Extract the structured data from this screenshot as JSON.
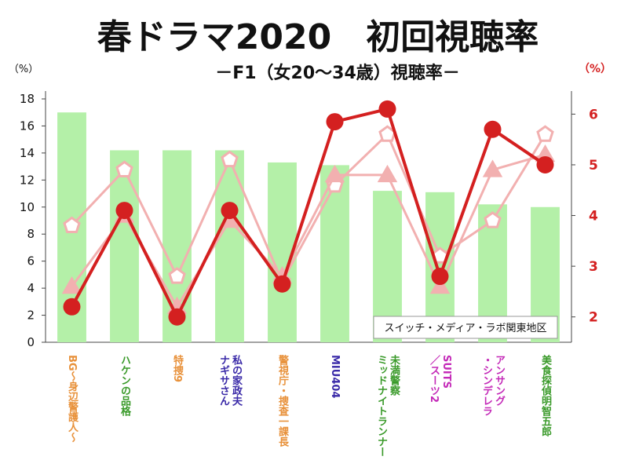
{
  "chart_data": {
    "type": "bar",
    "title": "春ドラマ2020　初回視聴率",
    "subtitle": "－F1（女20～34歳）視聴率－",
    "left_axis_unit": "（%）",
    "right_axis_unit": "（%）",
    "source_note": "スイッチ・メディア・ラボ関東地区",
    "categories": [
      {
        "lines": [
          "BG～身辺警護人～"
        ],
        "color": "#e8913a"
      },
      {
        "lines": [
          "ハケンの品格"
        ],
        "color": "#3a9a2a"
      },
      {
        "lines": [
          "特捜9"
        ],
        "color": "#e8913a"
      },
      {
        "lines": [
          "私の家政夫",
          "ナギサさん"
        ],
        "color": "#3a2aa8"
      },
      {
        "lines": [
          "警視庁・捜査一課長"
        ],
        "color": "#e8913a"
      },
      {
        "lines": [
          "MIU404"
        ],
        "color": "#3a2aa8"
      },
      {
        "lines": [
          "未満警察",
          "ミッドナイトランナー"
        ],
        "color": "#3a9a2a"
      },
      {
        "lines": [
          "SUITS",
          "／スーツ2"
        ],
        "color": "#c42ab8"
      },
      {
        "lines": [
          "アンサング",
          "・シンデレラ"
        ],
        "color": "#c42ab8"
      },
      {
        "lines": [
          "美食探偵明智五郎"
        ],
        "color": "#3a9a2a"
      }
    ],
    "left_axis": {
      "min": 0,
      "max": 18,
      "step": 2
    },
    "right_axis": {
      "min": 1.5,
      "max": 6.3,
      "ticks": [
        2,
        3,
        4,
        5,
        6
      ]
    },
    "series": [
      {
        "type": "bar",
        "axis": "left",
        "color": "#b4f0a8",
        "values": [
          17.0,
          14.2,
          14.2,
          14.2,
          13.3,
          13.1,
          11.2,
          11.1,
          10.2,
          10.0
        ]
      },
      {
        "type": "line",
        "axis": "right",
        "color": "#d42020",
        "values": [
          2.2,
          4.1,
          2.0,
          4.1,
          2.65,
          5.85,
          6.1,
          2.8,
          5.7,
          5.0
        ]
      },
      {
        "type": "line",
        "axis": "right",
        "color": "#f2b0b0",
        "marker": "pentagon",
        "values": [
          3.8,
          4.9,
          2.8,
          5.1,
          2.7,
          4.6,
          5.6,
          3.2,
          3.9,
          5.6
        ]
      },
      {
        "type": "line",
        "axis": "right",
        "color": "#f2b0b0",
        "marker": "triangle",
        "values": [
          2.6,
          4.0,
          2.2,
          3.9,
          2.8,
          4.8,
          4.8,
          2.6,
          4.9,
          5.2
        ]
      }
    ],
    "grid": false
  }
}
